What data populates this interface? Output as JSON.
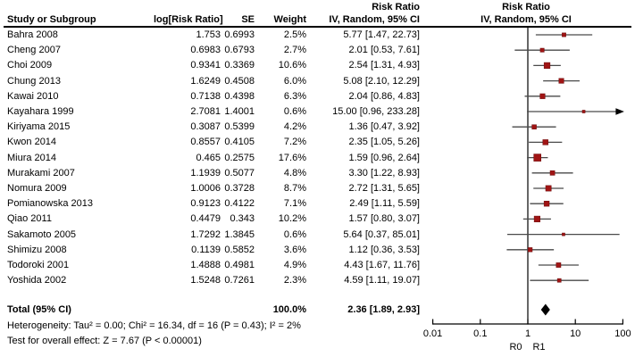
{
  "header": {
    "risk_ratio_top": "Risk Ratio",
    "study": "Study or Subgroup",
    "log_rr": "log[Risk Ratio]",
    "se": "SE",
    "weight": "Weight",
    "iv_random": "IV, Random, 95% CI"
  },
  "total": {
    "label": "Total (95% CI)",
    "weight": "100.0%",
    "ci_text": "2.36 [1.89, 2.93]",
    "point": 2.36,
    "low": 1.89,
    "high": 2.93
  },
  "footnotes": {
    "heterogeneity": "Heterogeneity: Tau² = 0.00; Chi² = 16.34, df = 16 (P = 0.43); I² = 2%",
    "overall_effect": "Test for overall effect: Z = 7.67 (P < 0.00001)"
  },
  "axis": {
    "tick_values": [
      0.01,
      0.1,
      1,
      10,
      100
    ],
    "tick_labels": [
      "0.01",
      "0.1",
      "1",
      "10",
      "100"
    ],
    "left_label": "R0",
    "right_label": "R1"
  },
  "colors": {
    "square": "#a01414",
    "square_border": "#6b0d0d",
    "ci_line": "#4a4a4a",
    "axis": "#000000",
    "diamond": "#000000"
  },
  "chart_data": {
    "type": "scatter",
    "title": "Risk Ratio IV, Random, 95% CI (forest plot, meta-analysis)",
    "x_scale": "log10",
    "xlim": [
      0.01,
      100
    ],
    "x_ticks": [
      0.01,
      0.1,
      1,
      10,
      100
    ],
    "x_axis_side_labels": [
      "R0",
      "R1"
    ],
    "studies": [
      {
        "name": "Bahra 2008",
        "log_rr": "1.753",
        "se": "0.6993",
        "weight": "2.5%",
        "weight_pct": 2.5,
        "ci_text": "5.77 [1.47, 22.73]",
        "rr": 5.77,
        "ci_low": 1.47,
        "ci_high": 22.73
      },
      {
        "name": "Cheng 2007",
        "log_rr": "0.6983",
        "se": "0.6793",
        "weight": "2.7%",
        "weight_pct": 2.7,
        "ci_text": "2.01 [0.53, 7.61]",
        "rr": 2.01,
        "ci_low": 0.53,
        "ci_high": 7.61
      },
      {
        "name": "Choi 2009",
        "log_rr": "0.9341",
        "se": "0.3369",
        "weight": "10.6%",
        "weight_pct": 10.6,
        "ci_text": "2.54 [1.31, 4.93]",
        "rr": 2.54,
        "ci_low": 1.31,
        "ci_high": 4.93
      },
      {
        "name": "Chung 2013",
        "log_rr": "1.6249",
        "se": "0.4508",
        "weight": "6.0%",
        "weight_pct": 6.0,
        "ci_text": "5.08 [2.10, 12.29]",
        "rr": 5.08,
        "ci_low": 2.1,
        "ci_high": 12.29
      },
      {
        "name": "Kawai 2010",
        "log_rr": "0.7138",
        "se": "0.4398",
        "weight": "6.3%",
        "weight_pct": 6.3,
        "ci_text": "2.04 [0.86, 4.83]",
        "rr": 2.04,
        "ci_low": 0.86,
        "ci_high": 4.83
      },
      {
        "name": "Kayahara 1999",
        "log_rr": "2.7081",
        "se": "1.4001",
        "weight": "0.6%",
        "weight_pct": 0.6,
        "ci_text": "15.00 [0.96, 233.28]",
        "rr": 15.0,
        "ci_low": 0.96,
        "ci_high": 233.28
      },
      {
        "name": "Kiriyama 2015",
        "log_rr": "0.3087",
        "se": "0.5399",
        "weight": "4.2%",
        "weight_pct": 4.2,
        "ci_text": "1.36 [0.47, 3.92]",
        "rr": 1.36,
        "ci_low": 0.47,
        "ci_high": 3.92
      },
      {
        "name": "Kwon 2014",
        "log_rr": "0.8557",
        "se": "0.4105",
        "weight": "7.2%",
        "weight_pct": 7.2,
        "ci_text": "2.35 [1.05, 5.26]",
        "rr": 2.35,
        "ci_low": 1.05,
        "ci_high": 5.26
      },
      {
        "name": "Miura 2014",
        "log_rr": "0.465",
        "se": "0.2575",
        "weight": "17.6%",
        "weight_pct": 17.6,
        "ci_text": "1.59 [0.96, 2.64]",
        "rr": 1.59,
        "ci_low": 0.96,
        "ci_high": 2.64
      },
      {
        "name": "Murakami 2007",
        "log_rr": "1.1939",
        "se": "0.5077",
        "weight": "4.8%",
        "weight_pct": 4.8,
        "ci_text": "3.30 [1.22, 8.93]",
        "rr": 3.3,
        "ci_low": 1.22,
        "ci_high": 8.93
      },
      {
        "name": "Nomura 2009",
        "log_rr": "1.0006",
        "se": "0.3728",
        "weight": "8.7%",
        "weight_pct": 8.7,
        "ci_text": "2.72 [1.31, 5.65]",
        "rr": 2.72,
        "ci_low": 1.31,
        "ci_high": 5.65
      },
      {
        "name": "Pomianowska 2013",
        "log_rr": "0.9123",
        "se": "0.4122",
        "weight": "7.1%",
        "weight_pct": 7.1,
        "ci_text": "2.49 [1.11, 5.59]",
        "rr": 2.49,
        "ci_low": 1.11,
        "ci_high": 5.59
      },
      {
        "name": "Qiao 2011",
        "log_rr": "0.4479",
        "se": "0.343",
        "weight": "10.2%",
        "weight_pct": 10.2,
        "ci_text": "1.57 [0.80, 3.07]",
        "rr": 1.57,
        "ci_low": 0.8,
        "ci_high": 3.07
      },
      {
        "name": "Sakamoto 2005",
        "log_rr": "1.7292",
        "se": "1.3845",
        "weight": "0.6%",
        "weight_pct": 0.6,
        "ci_text": "5.64 [0.37, 85.01]",
        "rr": 5.64,
        "ci_low": 0.37,
        "ci_high": 85.01
      },
      {
        "name": "Shimizu 2008",
        "log_rr": "0.1139",
        "se": "0.5852",
        "weight": "3.6%",
        "weight_pct": 3.6,
        "ci_text": "1.12 [0.36, 3.53]",
        "rr": 1.12,
        "ci_low": 0.36,
        "ci_high": 3.53
      },
      {
        "name": "Todoroki 2001",
        "log_rr": "1.4888",
        "se": "0.4981",
        "weight": "4.9%",
        "weight_pct": 4.9,
        "ci_text": "4.43 [1.67, 11.76]",
        "rr": 4.43,
        "ci_low": 1.67,
        "ci_high": 11.76
      },
      {
        "name": "Yoshida 2002",
        "log_rr": "1.5248",
        "se": "0.7261",
        "weight": "2.3%",
        "weight_pct": 2.3,
        "ci_text": "4.59 [1.11, 19.07]",
        "rr": 4.59,
        "ci_low": 1.11,
        "ci_high": 19.07
      }
    ],
    "total": {
      "label": "Total (95% CI)",
      "weight_pct": 100.0,
      "rr": 2.36,
      "ci_low": 1.89,
      "ci_high": 2.93
    }
  }
}
